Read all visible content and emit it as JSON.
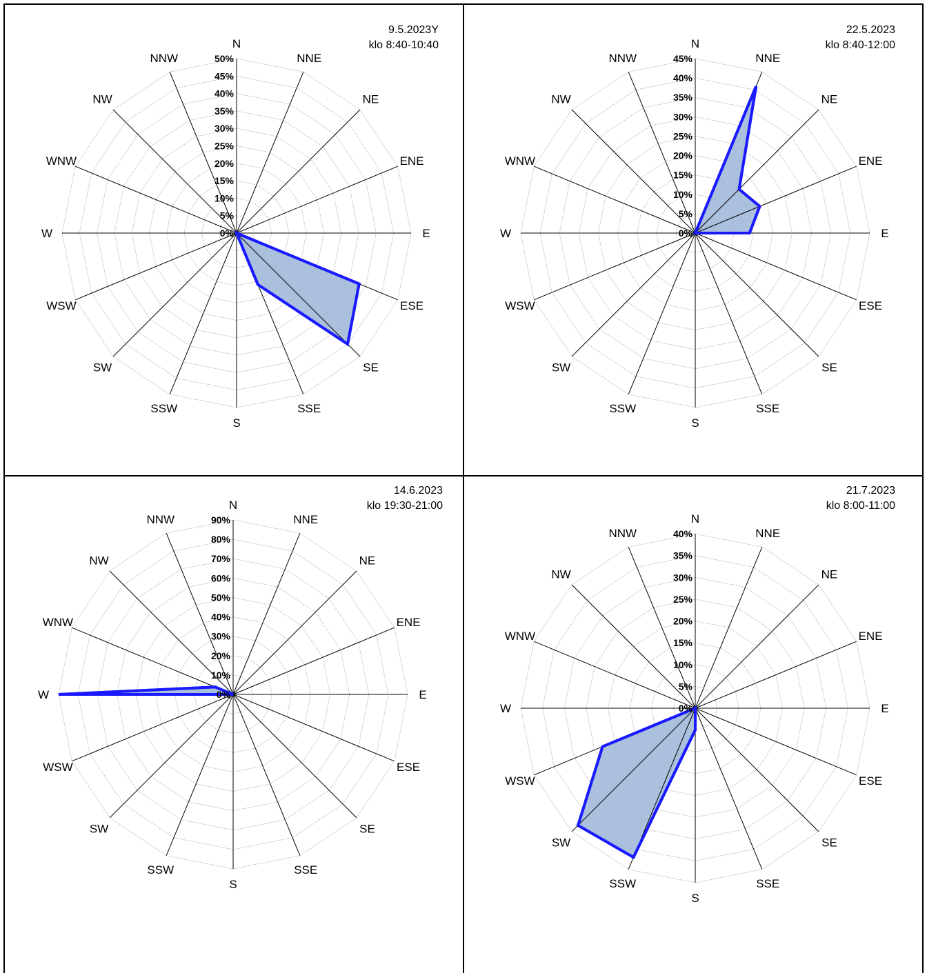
{
  "chart_data": [
    {
      "type": "radar",
      "title_line1": "9.5.2023Y",
      "title_line2": "klo 8:40-10:40",
      "directions": [
        "N",
        "NNE",
        "NE",
        "ENE",
        "E",
        "ESE",
        "SE",
        "SSE",
        "S",
        "SSW",
        "SW",
        "WSW",
        "W",
        "WNW",
        "NW",
        "NNW"
      ],
      "ticks": [
        "0%",
        "5%",
        "10%",
        "15%",
        "20%",
        "25%",
        "30%",
        "35%",
        "40%",
        "45%",
        "50%"
      ],
      "rmax": 50,
      "values": [
        0,
        0,
        0,
        0,
        0,
        38,
        45,
        16,
        0,
        0,
        0,
        0,
        0,
        0,
        0,
        0
      ],
      "line_color": "#1a1aff",
      "fill_color": "#a6bddb",
      "grid": true
    },
    {
      "type": "radar",
      "title_line1": "22.5.2023",
      "title_line2": "klo 8:40-12:00",
      "directions": [
        "N",
        "NNE",
        "NE",
        "ENE",
        "E",
        "ESE",
        "SE",
        "SSE",
        "S",
        "SSW",
        "SW",
        "WSW",
        "W",
        "WNW",
        "NW",
        "NNW"
      ],
      "ticks": [
        "0%",
        "5%",
        "10%",
        "15%",
        "20%",
        "25%",
        "30%",
        "35%",
        "40%",
        "45%"
      ],
      "rmax": 45,
      "values": [
        0,
        41,
        16,
        18,
        14,
        0,
        0,
        0,
        0,
        0,
        0,
        0,
        0,
        0,
        0,
        0
      ],
      "line_color": "#1a1aff",
      "fill_color": "#a6bddb",
      "grid": true
    },
    {
      "type": "radar",
      "title_line1": "14.6.2023",
      "title_line2": "klo 19:30-21:00",
      "directions": [
        "N",
        "NNE",
        "NE",
        "ENE",
        "E",
        "ESE",
        "SE",
        "SSE",
        "S",
        "SSW",
        "SW",
        "WSW",
        "W",
        "WNW",
        "NW",
        "NNW"
      ],
      "ticks": [
        "0%",
        "10%",
        "20%",
        "30%",
        "40%",
        "50%",
        "60%",
        "70%",
        "80%",
        "90%"
      ],
      "rmax": 90,
      "values": [
        0,
        0,
        0,
        0,
        0,
        0,
        0,
        0,
        0,
        0,
        0,
        0,
        90,
        10,
        0,
        0
      ],
      "line_color": "#1a1aff",
      "fill_color": "#a6bddb",
      "grid": true
    },
    {
      "type": "radar",
      "title_line1": "21.7.2023",
      "title_line2": "klo 8:00-11:00",
      "directions": [
        "N",
        "NNE",
        "NE",
        "ENE",
        "E",
        "ESE",
        "SE",
        "SSE",
        "S",
        "SSW",
        "SW",
        "WSW",
        "W",
        "WNW",
        "NW",
        "NNW"
      ],
      "ticks": [
        "0%",
        "5%",
        "10%",
        "15%",
        "20%",
        "25%",
        "30%",
        "35%",
        "40%"
      ],
      "rmax": 40,
      "values": [
        0,
        0,
        0,
        0,
        0,
        0,
        0,
        0,
        5,
        37,
        38,
        23,
        0,
        0,
        0,
        0
      ],
      "line_color": "#1a1aff",
      "fill_color": "#a6bddb",
      "grid": true
    }
  ]
}
